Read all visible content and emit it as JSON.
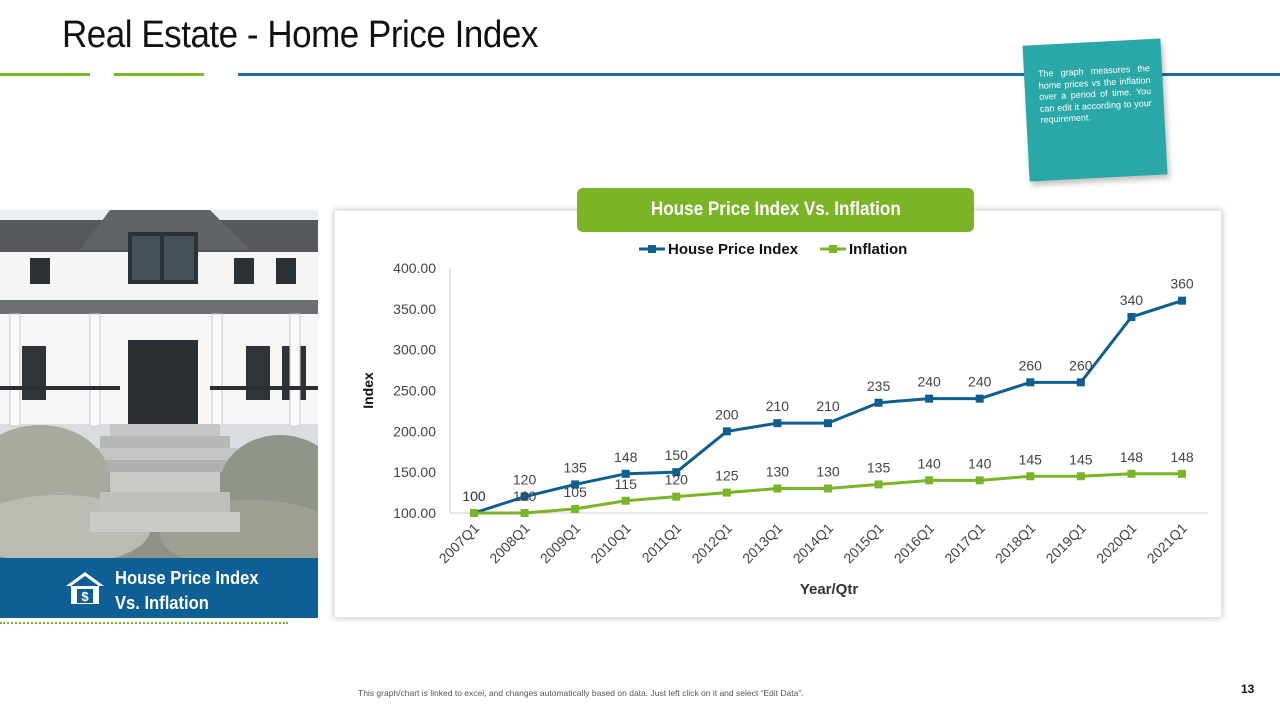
{
  "page": {
    "title": "Real Estate - Home Price Index",
    "note": "The graph measures the home prices vs the inflation over a period of time. You can edit it according to your requirement.",
    "caption_line1": "House Price Index",
    "caption_line2": "Vs. Inflation",
    "footer": "This graph/chart is linked to excel, and changes automatically based on data. Just left click on it and select “Edit Data”.",
    "page_number": "13"
  },
  "colors": {
    "accent_green": "#7cb428",
    "accent_blue": "#1d6aa5",
    "note_teal": "#2aa8a8",
    "series_index": "#0e5f8f",
    "series_inflation": "#7cb428"
  },
  "chart_data": {
    "type": "line",
    "title": "House Price Index Vs. Inflation",
    "xlabel": "Year/Qtr",
    "ylabel": "Index",
    "ylim": [
      100,
      400
    ],
    "yticks": [
      "100.00",
      "150.00",
      "200.00",
      "250.00",
      "300.00",
      "350.00",
      "400.00"
    ],
    "legend": "top",
    "grid": false,
    "categories": [
      "2007Q1",
      "2008Q1",
      "2009Q1",
      "2010Q1",
      "2011Q1",
      "2012Q1",
      "2013Q1",
      "2014Q1",
      "2015Q1",
      "2016Q1",
      "2017Q1",
      "2018Q1",
      "2019Q1",
      "2020Q1",
      "2021Q1"
    ],
    "series": [
      {
        "name": "House Price Index",
        "color": "#0e5f8f",
        "marker": "square",
        "values": [
          100,
          120,
          135,
          148,
          150,
          200,
          210,
          210,
          235,
          240,
          240,
          260,
          260,
          340,
          360
        ]
      },
      {
        "name": "Inflation",
        "color": "#7cb428",
        "marker": "square",
        "values": [
          100,
          100,
          105,
          115,
          120,
          125,
          130,
          130,
          135,
          140,
          140,
          145,
          145,
          148,
          148
        ]
      }
    ]
  }
}
